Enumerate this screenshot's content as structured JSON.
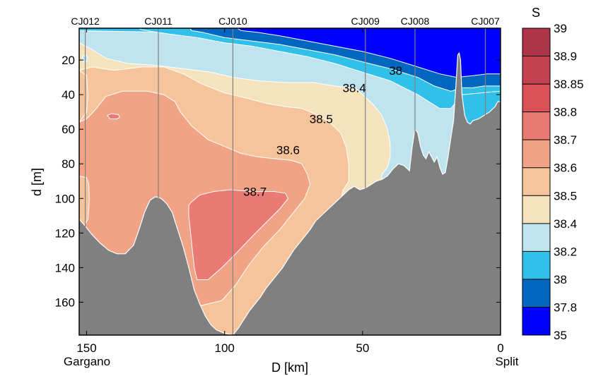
{
  "chart_data": {
    "type": "contourf",
    "title": "",
    "xlabel": "D [km]",
    "ylabel": "d [m]",
    "xlim": [
      152.7,
      0
    ],
    "ylim": [
      0,
      179
    ],
    "x_reversed": true,
    "y_reversed": true,
    "x_ticks": [
      150,
      100,
      50,
      0
    ],
    "x_tick_labels": [
      "150",
      "100",
      "50",
      "0"
    ],
    "x_endpoint_labels": {
      "left": "Gargano",
      "right": "Split"
    },
    "y_ticks": [
      20,
      40,
      60,
      80,
      100,
      120,
      140,
      160
    ],
    "y_tick_labels": [
      "20",
      "40",
      "60",
      "80",
      "100",
      "120",
      "140",
      "160"
    ],
    "grid": false,
    "stations": [
      {
        "name": "CJ012",
        "distance": 150.5
      },
      {
        "name": "CJ011",
        "distance": 124
      },
      {
        "name": "CJ010",
        "distance": 97
      },
      {
        "name": "CJ009",
        "distance": 49
      },
      {
        "name": "CJ008",
        "distance": 31
      },
      {
        "name": "CJ007",
        "distance": 5.5
      }
    ],
    "colorbar": {
      "title": "S",
      "placement": "right",
      "levels": [
        35,
        37.8,
        38,
        38.2,
        38.4,
        38.5,
        38.6,
        38.7,
        38.8,
        38.85,
        38.9,
        39
      ],
      "colors": [
        "#0000ff",
        "#0066c0",
        "#30c0ea",
        "#bfe4ef",
        "#f5e3be",
        "#f5c49b",
        "#f1a386",
        "#e97b74",
        "#d85258",
        "#c4424f",
        "#ae3447"
      ]
    },
    "contour_labels": [
      {
        "text": "38",
        "distance": 38,
        "depth": 26
      },
      {
        "text": "38.4",
        "distance": 53,
        "depth": 36
      },
      {
        "text": "38.5",
        "distance": 65,
        "depth": 54
      },
      {
        "text": "38.6",
        "distance": 77,
        "depth": 72
      },
      {
        "text": "38.7",
        "distance": 89,
        "depth": 96
      }
    ],
    "bathymetry": {
      "description": "seafloor depth along section (distance km, depth m)",
      "color": "#808080",
      "points": [
        [
          152.7,
          112
        ],
        [
          150.5,
          116
        ],
        [
          148,
          121
        ],
        [
          145,
          126
        ],
        [
          142,
          130
        ],
        [
          139,
          132
        ],
        [
          136,
          132
        ],
        [
          133,
          127
        ],
        [
          131,
          118
        ],
        [
          129,
          108
        ],
        [
          127,
          101
        ],
        [
          125,
          99
        ],
        [
          123,
          100
        ],
        [
          121,
          103
        ],
        [
          119,
          108
        ],
        [
          117,
          118
        ],
        [
          115,
          128
        ],
        [
          113,
          140
        ],
        [
          111,
          153
        ],
        [
          109,
          161
        ],
        [
          107,
          168
        ],
        [
          105,
          173
        ],
        [
          103,
          176
        ],
        [
          100,
          178
        ],
        [
          97,
          179
        ],
        [
          95,
          175
        ],
        [
          93,
          170
        ],
        [
          91,
          165
        ],
        [
          89,
          161
        ],
        [
          87,
          157
        ],
        [
          85,
          152
        ],
        [
          83,
          148
        ],
        [
          81,
          144
        ],
        [
          79,
          140
        ],
        [
          77,
          135
        ],
        [
          75,
          130
        ],
        [
          73,
          126
        ],
        [
          71,
          122
        ],
        [
          69,
          118
        ],
        [
          67,
          113
        ],
        [
          65,
          110
        ],
        [
          63,
          107
        ],
        [
          61,
          104
        ],
        [
          59,
          101
        ],
        [
          57,
          98
        ],
        [
          55,
          95
        ],
        [
          53,
          93
        ],
        [
          51,
          95
        ],
        [
          49,
          94
        ],
        [
          47,
          92
        ],
        [
          45,
          90
        ],
        [
          43,
          89
        ],
        [
          41,
          87
        ],
        [
          39,
          83
        ],
        [
          37,
          80
        ],
        [
          35,
          81
        ],
        [
          33,
          84
        ],
        [
          32,
          70
        ],
        [
          31,
          60
        ],
        [
          30,
          62
        ],
        [
          29,
          70
        ],
        [
          28,
          75
        ],
        [
          27,
          77
        ],
        [
          26,
          73
        ],
        [
          25,
          76
        ],
        [
          24,
          79
        ],
        [
          23,
          76
        ],
        [
          22,
          82
        ],
        [
          21,
          86
        ],
        [
          20,
          85
        ],
        [
          19,
          76
        ],
        [
          18,
          65
        ],
        [
          17,
          55
        ],
        [
          16,
          30
        ],
        [
          15.5,
          17
        ],
        [
          15,
          16
        ],
        [
          14.5,
          20
        ],
        [
          14,
          40
        ],
        [
          13,
          52
        ],
        [
          12,
          56
        ],
        [
          11,
          57
        ],
        [
          10,
          55
        ],
        [
          8,
          54
        ],
        [
          6,
          52
        ],
        [
          4,
          50
        ],
        [
          2,
          47
        ],
        [
          1,
          44
        ],
        [
          0,
          44
        ]
      ]
    }
  },
  "figure": {
    "background": "#ffffff",
    "seabed_color": "#808080",
    "contour_line_color": "#ffffff",
    "station_line_color": "#808080"
  }
}
